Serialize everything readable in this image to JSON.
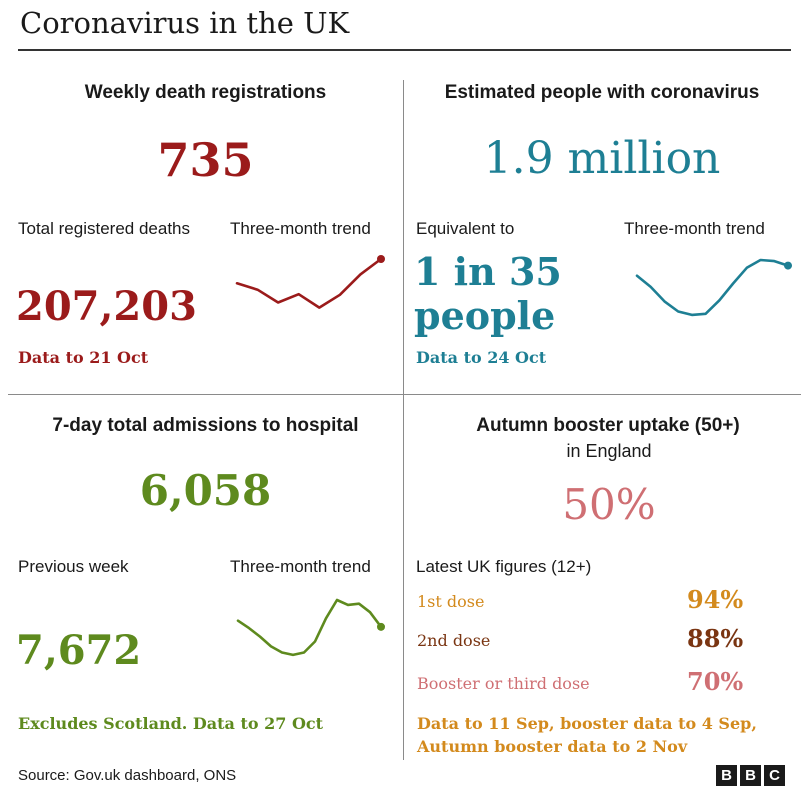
{
  "header": {
    "title": "Coronavirus in the UK"
  },
  "deaths": {
    "title": "Weekly death registrations",
    "value": "735",
    "total_label": "Total registered deaths",
    "total_value": "207,203",
    "trend_label": "Three-month trend",
    "note": "Data to 21 Oct",
    "color": "#9b1b1b"
  },
  "infections": {
    "title": "Estimated people with coronavirus",
    "value": "1.9 million",
    "equiv_label": "Equivalent to",
    "equiv_line1": "1 in 35",
    "equiv_line2": "people",
    "trend_label": "Three-month trend",
    "note": "Data to 24 Oct",
    "color": "#1e7f94"
  },
  "hospital": {
    "title": "7-day total admissions to hospital",
    "value": "6,058",
    "prev_label": "Previous week",
    "prev_value": "7,672",
    "trend_label": "Three-month trend",
    "note": "Excludes Scotland. Data to 27 Oct",
    "color": "#5e8a1e"
  },
  "booster": {
    "title_line1": "Autumn booster uptake (50+)",
    "title_line2": "in England",
    "value": "50%",
    "uk_label": "Latest UK figures (12+)",
    "doses": [
      {
        "label": "1st dose",
        "value": "94%",
        "color": "#d38a1d"
      },
      {
        "label": "2nd dose",
        "value": "88%",
        "color": "#7a3512"
      },
      {
        "label": "Booster or third dose",
        "value": "70%",
        "color": "#cf6f73"
      }
    ],
    "note_line1": "Data to 11 Sep, booster data to 4 Sep,",
    "note_line2": "Autumn booster data to 2 Nov",
    "value_color": "#cf6f73",
    "note_color": "#d38a1d"
  },
  "footer": {
    "source": "Source: Gov.uk dashboard, ONS",
    "logo_letters": [
      "B",
      "B",
      "C"
    ]
  },
  "chart_data": [
    {
      "type": "line",
      "title": "Weekly death registrations",
      "series": [
        {
          "values": [
            62,
            52,
            32,
            45,
            24,
            44,
            76,
            100
          ]
        }
      ],
      "ylim": [
        0,
        100
      ]
    },
    {
      "type": "line",
      "title": "Estimated people with coronavirus",
      "series": [
        {
          "values": [
            72,
            52,
            26,
            8,
            2,
            4,
            28,
            58,
            86,
            100,
            98,
            90
          ]
        }
      ],
      "ylim": [
        0,
        100
      ]
    },
    {
      "type": "line",
      "title": "7-day total admissions to hospital",
      "series": [
        {
          "values": [
            66,
            54,
            40,
            24,
            14,
            10,
            14,
            32,
            70,
            100,
            92,
            94,
            80,
            56
          ]
        }
      ],
      "ylim": [
        0,
        100
      ]
    }
  ]
}
